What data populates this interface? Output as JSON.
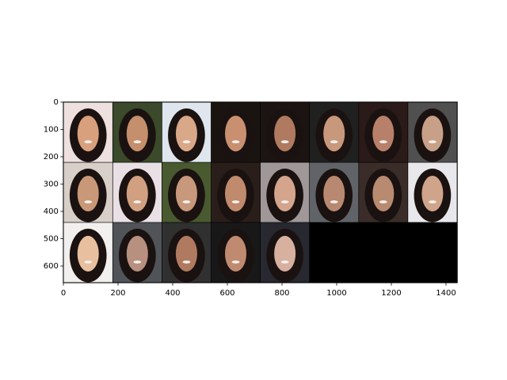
{
  "chart_data": {
    "type": "image",
    "xlim": [
      -0.5,
      1441.5
    ],
    "ylim": [
      661.5,
      -0.5
    ],
    "xticks": [
      0,
      200,
      400,
      600,
      800,
      1000,
      1200,
      1400
    ],
    "yticks": [
      0,
      100,
      200,
      300,
      400,
      500,
      600
    ]
  }
}
